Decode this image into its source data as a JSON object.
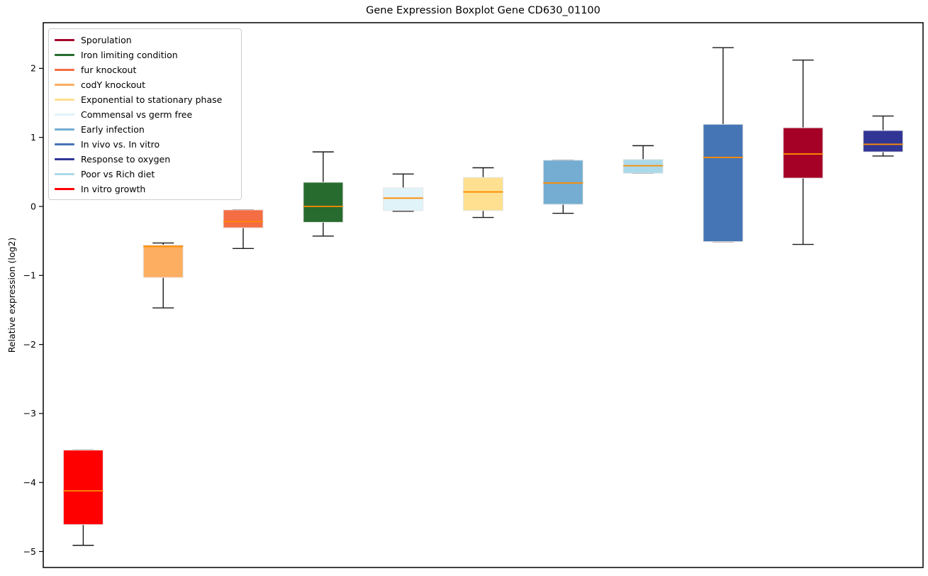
{
  "figure": {
    "background": "#ffffff",
    "frame_color": "#000000"
  },
  "chart_data": {
    "type": "boxplot",
    "title": "Gene Expression Boxplot Gene CD630_01100",
    "ylabel": "Relative expression (log2)",
    "xlabel": "",
    "yticks": [
      2,
      1,
      0,
      -1,
      -2,
      -3,
      -4,
      -5
    ],
    "ylim": [
      -5.23,
      2.66
    ],
    "grid": false,
    "x_tick_labels": [],
    "median_color": "#ff8c00",
    "box_edge_color": "#e6e6e6",
    "whisker_color": "#1a1a1a",
    "series": [
      {
        "label": "In vitro growth",
        "color": "#ff0000",
        "whislo": -4.91,
        "q1": -4.61,
        "med": -4.12,
        "q3": -3.53,
        "whishi": -3.53
      },
      {
        "label": "codY knockout",
        "color": "#fdae61",
        "whislo": -1.47,
        "q1": -1.03,
        "med": -0.58,
        "q3": -0.56,
        "whishi": -0.53
      },
      {
        "label": "fur knockout",
        "color": "#f46d43",
        "whislo": -0.61,
        "q1": -0.31,
        "med": -0.22,
        "q3": -0.05,
        "whishi": -0.05
      },
      {
        "label": "Iron limiting condition",
        "color": "#276b2e",
        "whislo": -0.43,
        "q1": -0.23,
        "med": 0.0,
        "q3": 0.35,
        "whishi": 0.79
      },
      {
        "label": "Commensal vs germ free",
        "color": "#e0f3f8",
        "whislo": -0.07,
        "q1": -0.06,
        "med": 0.12,
        "q3": 0.27,
        "whishi": 0.47
      },
      {
        "label": "Exponential to stationary phase",
        "color": "#fee090",
        "whislo": -0.16,
        "q1": -0.06,
        "med": 0.21,
        "q3": 0.42,
        "whishi": 0.56
      },
      {
        "label": "Early infection",
        "color": "#74add1",
        "whislo": -0.1,
        "q1": 0.03,
        "med": 0.34,
        "q3": 0.67,
        "whishi": 0.67
      },
      {
        "label": "Poor vs Rich diet",
        "color": "#abd9e9",
        "whislo": 0.48,
        "q1": 0.48,
        "med": 0.59,
        "q3": 0.68,
        "whishi": 0.88
      },
      {
        "label": "In vivo vs. In vitro",
        "color": "#4575b4",
        "whislo": -0.51,
        "q1": -0.51,
        "med": 0.71,
        "q3": 1.19,
        "whishi": 2.3
      },
      {
        "label": "Sporulation",
        "color": "#a50026",
        "whislo": -0.55,
        "q1": 0.41,
        "med": 0.76,
        "q3": 1.14,
        "whishi": 2.12
      },
      {
        "label": "Response to oxygen",
        "color": "#313695",
        "whislo": 0.73,
        "q1": 0.79,
        "med": 0.9,
        "q3": 1.1,
        "whishi": 1.31
      }
    ],
    "legend_position": "upper left",
    "legend": [
      {
        "label": "Sporulation",
        "color": "#a50026"
      },
      {
        "label": "Iron limiting condition",
        "color": "#276b2e"
      },
      {
        "label": "fur knockout",
        "color": "#f46d43"
      },
      {
        "label": "codY knockout",
        "color": "#fdae61"
      },
      {
        "label": "Exponential to stationary phase",
        "color": "#fee090"
      },
      {
        "label": "Commensal vs germ free",
        "color": "#e0f3f8"
      },
      {
        "label": "Early infection",
        "color": "#74add1"
      },
      {
        "label": "In vivo vs. In vitro",
        "color": "#4575b4"
      },
      {
        "label": "Response to oxygen",
        "color": "#313695"
      },
      {
        "label": "Poor vs Rich diet",
        "color": "#abd9e9"
      },
      {
        "label": "In vitro growth",
        "color": "#ff0000"
      }
    ]
  }
}
